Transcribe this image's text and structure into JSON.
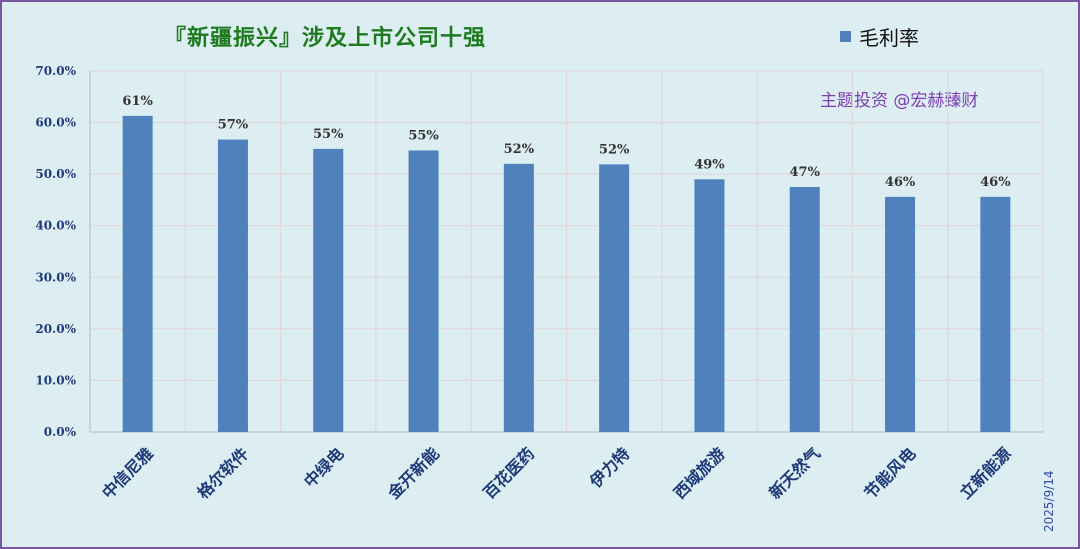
{
  "header": {
    "title": "『新疆振兴』涉及上市公司十强",
    "watermark": "主题投资 @宏赫臻财",
    "date": "2025/9/14"
  },
  "chart_data": {
    "type": "bar",
    "title": "『新疆振兴』涉及上市公司十强",
    "categories": [
      "中信尼雅",
      "格尔软件",
      "中绿电",
      "金开新能",
      "百花医药",
      "伊力特",
      "西域旅游",
      "新天然气",
      "节能风电",
      "立新能源"
    ],
    "series": [
      {
        "name": "毛利率",
        "values": [
          61.3,
          56.7,
          54.9,
          54.6,
          52.0,
          51.9,
          49.0,
          47.5,
          45.6,
          45.6
        ],
        "data_labels": [
          "61%",
          "57%",
          "55%",
          "55%",
          "52%",
          "52%",
          "49%",
          "47%",
          "46%",
          "46%"
        ]
      }
    ],
    "ylim": [
      0,
      70
    ],
    "yticks": [
      "0.0%",
      "10.0%",
      "20.0%",
      "30.0%",
      "40.0%",
      "50.0%",
      "60.0%",
      "70.0%"
    ],
    "xlabel": "",
    "ylabel": "",
    "grid": true,
    "legend_position": "top-right",
    "colors": {
      "bar": "#4f81bd",
      "background": "#ddeef2",
      "grid": "#e3d3d8",
      "axis_text": "#1f3a78"
    }
  }
}
